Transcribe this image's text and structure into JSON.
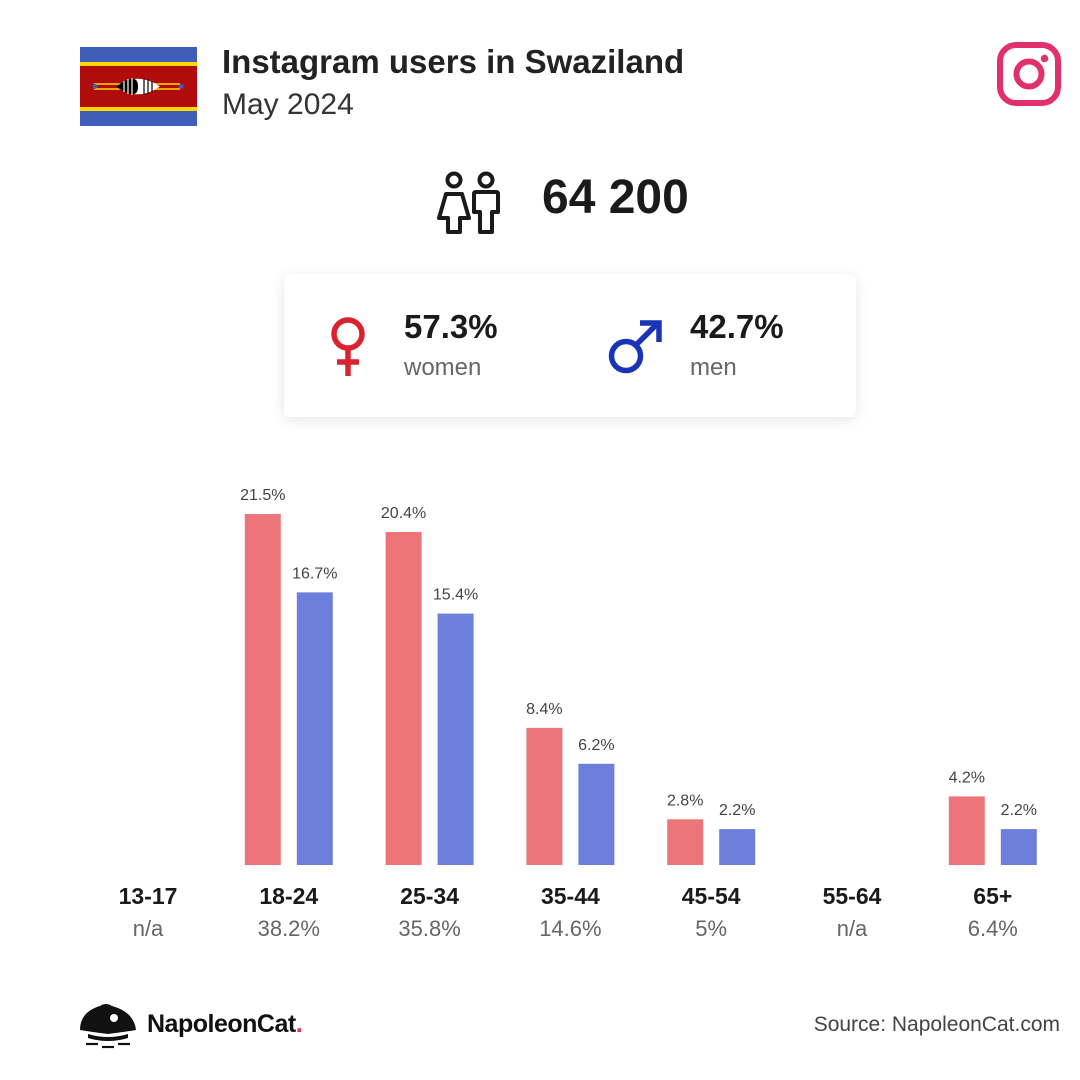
{
  "header": {
    "title": "Instagram users in Swaziland",
    "subtitle": "May 2024"
  },
  "total_users": "64 200",
  "gender": {
    "women_pct": "57.3%",
    "women_label": "women",
    "men_pct": "42.7%",
    "men_label": "men"
  },
  "colors": {
    "women": "#EB7578",
    "men": "#6C7FDB",
    "women_symbol": "#D9232E",
    "men_symbol": "#1A34B8",
    "instagram": "#E1306C",
    "accent_dot": "#E8304F"
  },
  "icons": [
    "flag-icon",
    "instagram-icon",
    "people-icon",
    "female-symbol-icon",
    "male-symbol-icon",
    "napoleoncat-logo-icon"
  ],
  "chart_data": {
    "type": "bar",
    "categories": [
      "13-17",
      "18-24",
      "25-34",
      "35-44",
      "45-54",
      "55-64",
      "65+"
    ],
    "group_totals": [
      "n/a",
      "38.2%",
      "35.8%",
      "14.6%",
      "5%",
      "n/a",
      "6.4%"
    ],
    "series": [
      {
        "key": "women",
        "values": [
          null,
          21.5,
          20.4,
          8.4,
          2.8,
          null,
          4.2
        ],
        "labels": [
          "",
          "21.5%",
          "20.4%",
          "8.4%",
          "2.8%",
          "",
          "4.2%"
        ]
      },
      {
        "key": "men",
        "values": [
          null,
          16.7,
          15.4,
          6.2,
          2.2,
          null,
          2.2
        ],
        "labels": [
          "",
          "16.7%",
          "15.4%",
          "6.2%",
          "2.2%",
          "",
          "2.2%"
        ]
      }
    ],
    "ylim": [
      0,
      21.5
    ],
    "grid": false,
    "legend": "none"
  },
  "footer": {
    "brand": "NapoleonCat",
    "brand_dot": ".",
    "source": "Source: NapoleonCat.com"
  }
}
